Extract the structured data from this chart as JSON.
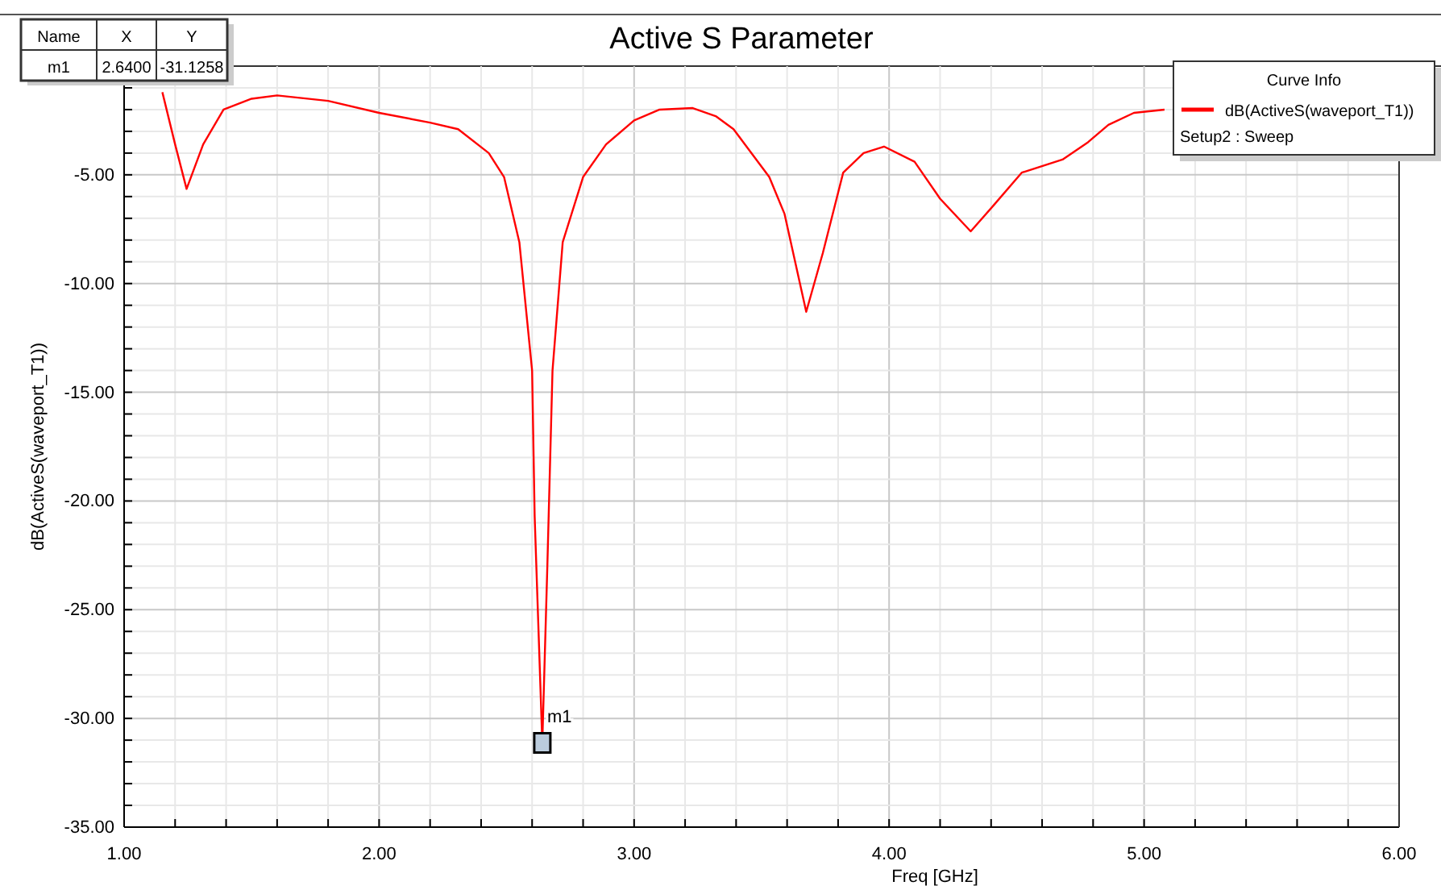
{
  "chart_data": {
    "type": "line",
    "title": "Active S Parameter",
    "xlabel": "Freq [GHz]",
    "ylabel": "dB(ActiveS(waveport_T1))",
    "legend_title": "Curve Info",
    "legend": "top right",
    "grid": true,
    "marker": "none",
    "line_style": "solid",
    "xlim": [
      1,
      6
    ],
    "ylim": [
      -35,
      0
    ],
    "xticks": [
      {
        "value": 1,
        "label": "1.00"
      },
      {
        "value": 1.2,
        "label": null
      },
      {
        "value": 1.4,
        "label": null
      },
      {
        "value": 1.6,
        "label": null
      },
      {
        "value": 1.8,
        "label": null
      },
      {
        "value": 2,
        "label": "2.00"
      },
      {
        "value": 2.2,
        "label": null
      },
      {
        "value": 2.4,
        "label": null
      },
      {
        "value": 2.6,
        "label": null
      },
      {
        "value": 2.8,
        "label": null
      },
      {
        "value": 3,
        "label": "3.00"
      },
      {
        "value": 3.2,
        "label": null
      },
      {
        "value": 3.4,
        "label": null
      },
      {
        "value": 3.6,
        "label": null
      },
      {
        "value": 3.8,
        "label": null
      },
      {
        "value": 4,
        "label": "4.00"
      },
      {
        "value": 4.2,
        "label": null
      },
      {
        "value": 4.4,
        "label": null
      },
      {
        "value": 4.6,
        "label": null
      },
      {
        "value": 4.8,
        "label": null
      },
      {
        "value": 5,
        "label": "5.00"
      },
      {
        "value": 5.2,
        "label": null
      },
      {
        "value": 5.4,
        "label": null
      },
      {
        "value": 5.6,
        "label": null
      },
      {
        "value": 5.8,
        "label": null
      },
      {
        "value": 6,
        "label": "6.00"
      }
    ],
    "yticks": [
      {
        "value": -35,
        "label": "-35.00"
      },
      {
        "value": -34,
        "label": null
      },
      {
        "value": -33,
        "label": null
      },
      {
        "value": -32,
        "label": null
      },
      {
        "value": -31,
        "label": null
      },
      {
        "value": -30,
        "label": "-30.00"
      },
      {
        "value": -29,
        "label": null
      },
      {
        "value": -28,
        "label": null
      },
      {
        "value": -27,
        "label": null
      },
      {
        "value": -26,
        "label": null
      },
      {
        "value": -25,
        "label": "-25.00"
      },
      {
        "value": -24,
        "label": null
      },
      {
        "value": -23,
        "label": null
      },
      {
        "value": -22,
        "label": null
      },
      {
        "value": -21,
        "label": null
      },
      {
        "value": -20,
        "label": "-20.00"
      },
      {
        "value": -19,
        "label": null
      },
      {
        "value": -18,
        "label": null
      },
      {
        "value": -17,
        "label": null
      },
      {
        "value": -16,
        "label": null
      },
      {
        "value": -15,
        "label": "-15.00"
      },
      {
        "value": -14,
        "label": null
      },
      {
        "value": -13,
        "label": null
      },
      {
        "value": -12,
        "label": null
      },
      {
        "value": -11,
        "label": null
      },
      {
        "value": -10,
        "label": "-10.00"
      },
      {
        "value": -9,
        "label": null
      },
      {
        "value": -8,
        "label": null
      },
      {
        "value": -7,
        "label": null
      },
      {
        "value": -6,
        "label": null
      },
      {
        "value": -5,
        "label": "-5.00"
      },
      {
        "value": -4,
        "label": null
      },
      {
        "value": -3,
        "label": null
      },
      {
        "value": -2,
        "label": null
      },
      {
        "value": -1,
        "label": null
      }
    ],
    "series": [
      {
        "name": "dB(ActiveS(waveport_T1))",
        "color": "#ff0000",
        "x": [
          1.15,
          1.2,
          1.245,
          1.31,
          1.39,
          1.5,
          1.6,
          1.8,
          2.0,
          2.2,
          2.31,
          2.43,
          2.49,
          2.55,
          2.6,
          2.61,
          2.64,
          2.66,
          2.68,
          2.72,
          2.8,
          2.89,
          3.0,
          3.1,
          3.23,
          3.32,
          3.39,
          3.53,
          3.59,
          3.675,
          3.74,
          3.82,
          3.9,
          3.98,
          4.1,
          4.2,
          4.32,
          4.41,
          4.52,
          4.68,
          4.78,
          4.86,
          4.96,
          5.08
        ],
        "values": [
          -1.2,
          -3.6,
          -5.65,
          -3.6,
          -2.0,
          -1.5,
          -1.35,
          -1.6,
          -2.15,
          -2.6,
          -2.9,
          -4.0,
          -5.1,
          -8.1,
          -14,
          -20.7,
          -31.1258,
          -22.9,
          -14,
          -8.1,
          -5.1,
          -3.6,
          -2.5,
          -2.0,
          -1.93,
          -2.3,
          -2.9,
          -5.1,
          -6.8,
          -11.3,
          -8.6,
          -4.9,
          -4.0,
          -3.7,
          -4.4,
          -6.1,
          -7.6,
          -6.4,
          -4.9,
          -4.3,
          -3.5,
          -2.7,
          -2.15,
          -2.0
        ]
      }
    ],
    "annotations": [
      {
        "text": "m1",
        "x": 2.64,
        "y": -31.1258
      },
      "Name",
      "X",
      "Y",
      "m1",
      "2.6400",
      "-31.1258",
      "Setup2 : Sweep"
    ]
  }
}
